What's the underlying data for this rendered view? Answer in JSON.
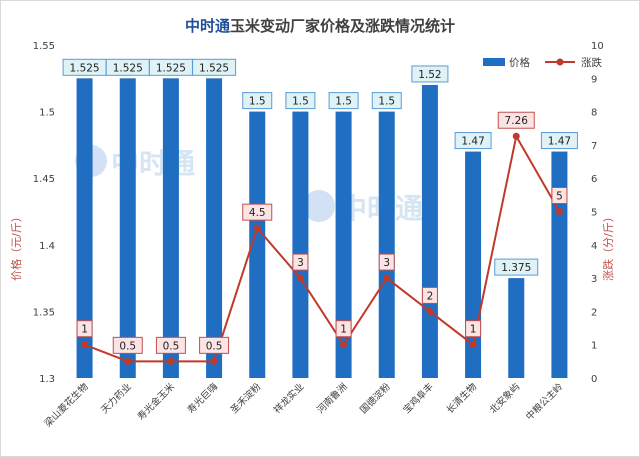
{
  "title": {
    "brand": "中时通",
    "rest": "玉米变动厂家价格及涨跌情况统计"
  },
  "chart_data": {
    "type": "bar",
    "categories": [
      "梁山菱花生物",
      "天力药业",
      "寿光金玉米",
      "寿光巨嗨",
      "圣禾淀粉",
      "祥龙实业",
      "河南鲁洲",
      "国德淀粉",
      "宝鸡阜丰",
      "长清生物",
      "北安象屿",
      "中粮公主岭"
    ],
    "series": [
      {
        "name": "价格",
        "type": "bar",
        "axis": "left",
        "color": "#1f6ec2",
        "values": [
          1.525,
          1.525,
          1.525,
          1.525,
          1.5,
          1.5,
          1.5,
          1.5,
          1.52,
          1.47,
          1.375,
          1.47
        ],
        "labels": [
          "1.525",
          "1.525",
          "1.525",
          "1.525",
          "1.5",
          "1.5",
          "1.5",
          "1.5",
          "1.52",
          "1.47",
          "1.375",
          "1.47"
        ]
      },
      {
        "name": "涨跌",
        "type": "line",
        "axis": "right",
        "color": "#c0392b",
        "values": [
          1,
          0.5,
          0.5,
          0.5,
          4.5,
          3,
          1,
          3,
          2,
          1,
          7.26,
          5
        ],
        "labels": [
          "1",
          "0.5",
          "0.5",
          "0.5",
          "4.5",
          "3",
          "1",
          "3",
          "2",
          "1",
          "7.26",
          "5"
        ]
      }
    ],
    "ylabel": "价格（元/斤）",
    "ylabel_right": "涨跌（分/斤）",
    "ylim": [
      1.3,
      1.55
    ],
    "ylim_right": [
      0,
      10
    ],
    "y_ticks": [
      "1.3",
      "1.35",
      "1.4",
      "1.45",
      "1.5",
      "1.55"
    ],
    "y_ticks_right": [
      "0",
      "1",
      "2",
      "3",
      "4",
      "5",
      "6",
      "7",
      "8",
      "9",
      "10"
    ],
    "legend_position": "top-right",
    "grid": false
  },
  "watermark": {
    "text": "中时通",
    "color": "#9bbfe6"
  },
  "colors": {
    "bar_label_fill": "#dff3f7",
    "bar_label_stroke": "#5b9bd5",
    "line_label_fill": "#fce4e4",
    "line_label_stroke": "#c0504d",
    "axis_label": "#c0504d"
  }
}
